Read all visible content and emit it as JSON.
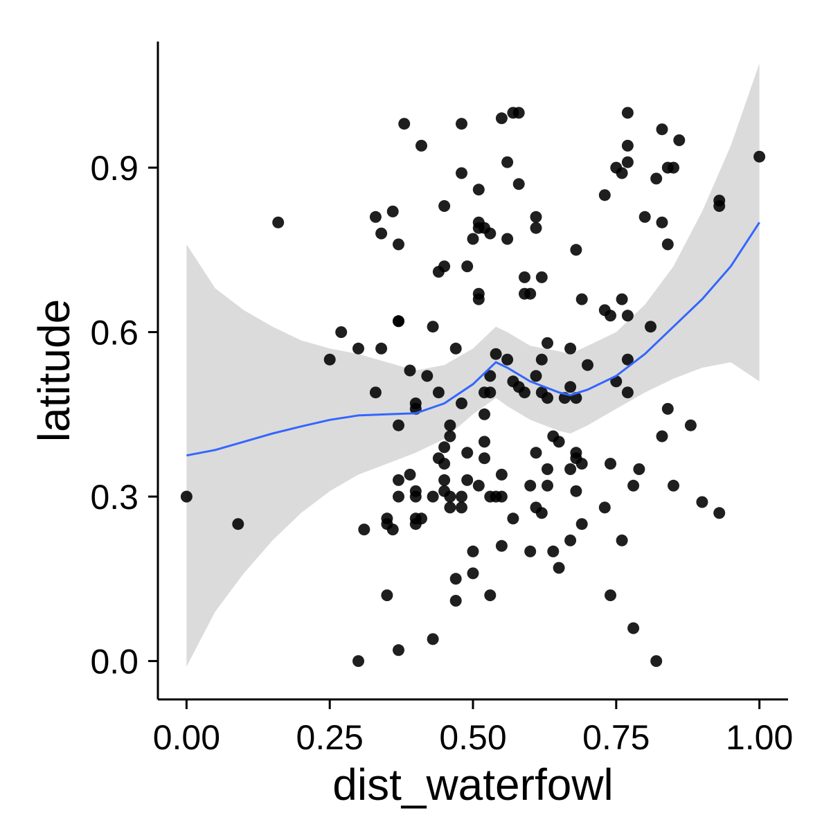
{
  "chart_data": {
    "type": "scatter",
    "title": "",
    "xlabel": "dist_waterfowl",
    "ylabel": "latitude",
    "xlim": [
      -0.05,
      1.05
    ],
    "ylim": [
      -0.07,
      1.13
    ],
    "x_ticks": [
      0,
      0.25,
      0.5,
      0.75,
      1
    ],
    "x_tick_labels": [
      "0.00",
      "0.25",
      "0.50",
      "0.75",
      "1.00"
    ],
    "y_ticks": [
      0,
      0.3,
      0.6,
      0.9
    ],
    "y_tick_labels": [
      "0.0",
      "0.3",
      "0.6",
      "0.9"
    ],
    "grid": false,
    "legend": "none",
    "colors": {
      "points": "#000000",
      "smooth_line": "#3366FF",
      "confidence_band": "#D9D9D9",
      "axis": "#000000"
    },
    "points": [
      [
        0.0,
        0.3
      ],
      [
        0.09,
        0.25
      ],
      [
        0.16,
        0.8
      ],
      [
        0.25,
        0.55
      ],
      [
        0.27,
        0.6
      ],
      [
        0.3,
        0.57
      ],
      [
        0.3,
        0.0
      ],
      [
        0.31,
        0.24
      ],
      [
        0.33,
        0.49
      ],
      [
        0.33,
        0.81
      ],
      [
        0.34,
        0.78
      ],
      [
        0.34,
        0.57
      ],
      [
        0.35,
        0.25
      ],
      [
        0.35,
        0.26
      ],
      [
        0.35,
        0.12
      ],
      [
        0.36,
        0.82
      ],
      [
        0.36,
        0.24
      ],
      [
        0.37,
        0.62
      ],
      [
        0.37,
        0.62
      ],
      [
        0.37,
        0.76
      ],
      [
        0.37,
        0.43
      ],
      [
        0.37,
        0.33
      ],
      [
        0.37,
        0.3
      ],
      [
        0.37,
        0.02
      ],
      [
        0.38,
        0.98
      ],
      [
        0.39,
        0.53
      ],
      [
        0.39,
        0.34
      ],
      [
        0.4,
        0.31
      ],
      [
        0.4,
        0.3
      ],
      [
        0.4,
        0.26
      ],
      [
        0.4,
        0.25
      ],
      [
        0.4,
        0.46
      ],
      [
        0.4,
        0.47
      ],
      [
        0.41,
        0.94
      ],
      [
        0.41,
        0.26
      ],
      [
        0.42,
        0.52
      ],
      [
        0.43,
        0.61
      ],
      [
        0.43,
        0.3
      ],
      [
        0.43,
        0.04
      ],
      [
        0.44,
        0.37
      ],
      [
        0.44,
        0.49
      ],
      [
        0.44,
        0.71
      ],
      [
        0.45,
        0.72
      ],
      [
        0.45,
        0.83
      ],
      [
        0.45,
        0.36
      ],
      [
        0.45,
        0.33
      ],
      [
        0.45,
        0.31
      ],
      [
        0.45,
        0.39
      ],
      [
        0.46,
        0.41
      ],
      [
        0.46,
        0.43
      ],
      [
        0.46,
        0.28
      ],
      [
        0.46,
        0.3
      ],
      [
        0.47,
        0.15
      ],
      [
        0.47,
        0.11
      ],
      [
        0.47,
        0.57
      ],
      [
        0.48,
        0.98
      ],
      [
        0.48,
        0.89
      ],
      [
        0.48,
        0.47
      ],
      [
        0.48,
        0.28
      ],
      [
        0.48,
        0.3
      ],
      [
        0.49,
        0.72
      ],
      [
        0.49,
        0.33
      ],
      [
        0.49,
        0.38
      ],
      [
        0.5,
        0.77
      ],
      [
        0.5,
        0.16
      ],
      [
        0.5,
        0.2
      ],
      [
        0.51,
        0.8
      ],
      [
        0.51,
        0.79
      ],
      [
        0.51,
        0.32
      ],
      [
        0.51,
        0.66
      ],
      [
        0.51,
        0.67
      ],
      [
        0.51,
        0.86
      ],
      [
        0.52,
        0.79
      ],
      [
        0.52,
        0.49
      ],
      [
        0.52,
        0.45
      ],
      [
        0.52,
        0.37
      ],
      [
        0.52,
        0.4
      ],
      [
        0.53,
        0.52
      ],
      [
        0.53,
        0.49
      ],
      [
        0.53,
        0.78
      ],
      [
        0.53,
        0.3
      ],
      [
        0.53,
        0.12
      ],
      [
        0.54,
        0.3
      ],
      [
        0.54,
        0.56
      ],
      [
        0.55,
        0.99
      ],
      [
        0.55,
        0.3
      ],
      [
        0.55,
        0.21
      ],
      [
        0.55,
        0.34
      ],
      [
        0.56,
        0.91
      ],
      [
        0.56,
        0.55
      ],
      [
        0.56,
        0.77
      ],
      [
        0.57,
        1.0
      ],
      [
        0.57,
        0.51
      ],
      [
        0.57,
        0.26
      ],
      [
        0.58,
        1.0
      ],
      [
        0.58,
        0.5
      ],
      [
        0.58,
        0.87
      ],
      [
        0.59,
        0.7
      ],
      [
        0.59,
        0.67
      ],
      [
        0.59,
        0.49
      ],
      [
        0.6,
        0.2
      ],
      [
        0.6,
        0.32
      ],
      [
        0.6,
        0.67
      ],
      [
        0.61,
        0.79
      ],
      [
        0.61,
        0.81
      ],
      [
        0.61,
        0.52
      ],
      [
        0.61,
        0.38
      ],
      [
        0.61,
        0.28
      ],
      [
        0.62,
        0.55
      ],
      [
        0.62,
        0.27
      ],
      [
        0.62,
        0.7
      ],
      [
        0.62,
        0.49
      ],
      [
        0.63,
        0.58
      ],
      [
        0.63,
        0.48
      ],
      [
        0.63,
        0.35
      ],
      [
        0.63,
        0.32
      ],
      [
        0.64,
        0.41
      ],
      [
        0.64,
        0.2
      ],
      [
        0.65,
        0.4
      ],
      [
        0.65,
        0.17
      ],
      [
        0.66,
        0.48
      ],
      [
        0.67,
        0.57
      ],
      [
        0.67,
        0.5
      ],
      [
        0.67,
        0.35
      ],
      [
        0.67,
        0.22
      ],
      [
        0.68,
        0.75
      ],
      [
        0.68,
        0.48
      ],
      [
        0.68,
        0.38
      ],
      [
        0.68,
        0.37
      ],
      [
        0.68,
        0.31
      ],
      [
        0.69,
        0.66
      ],
      [
        0.69,
        0.36
      ],
      [
        0.69,
        0.25
      ],
      [
        0.7,
        0.54
      ],
      [
        0.73,
        0.64
      ],
      [
        0.73,
        0.85
      ],
      [
        0.73,
        0.28
      ],
      [
        0.74,
        0.63
      ],
      [
        0.74,
        0.36
      ],
      [
        0.74,
        0.12
      ],
      [
        0.75,
        0.9
      ],
      [
        0.75,
        0.51
      ],
      [
        0.76,
        0.66
      ],
      [
        0.76,
        0.22
      ],
      [
        0.76,
        0.89
      ],
      [
        0.77,
        0.94
      ],
      [
        0.77,
        1.0
      ],
      [
        0.77,
        0.91
      ],
      [
        0.77,
        0.63
      ],
      [
        0.77,
        0.49
      ],
      [
        0.77,
        0.55
      ],
      [
        0.78,
        0.32
      ],
      [
        0.78,
        0.06
      ],
      [
        0.79,
        0.35
      ],
      [
        0.8,
        0.81
      ],
      [
        0.81,
        0.61
      ],
      [
        0.82,
        0.88
      ],
      [
        0.82,
        0.0
      ],
      [
        0.83,
        0.97
      ],
      [
        0.83,
        0.8
      ],
      [
        0.83,
        0.41
      ],
      [
        0.84,
        0.76
      ],
      [
        0.84,
        0.9
      ],
      [
        0.84,
        0.46
      ],
      [
        0.85,
        0.32
      ],
      [
        0.85,
        0.9
      ],
      [
        0.86,
        0.95
      ],
      [
        0.88,
        0.43
      ],
      [
        0.9,
        0.29
      ],
      [
        0.93,
        0.84
      ],
      [
        0.93,
        0.83
      ],
      [
        0.93,
        0.27
      ],
      [
        1.0,
        0.92
      ]
    ],
    "smooth": {
      "method": "loess",
      "x": [
        0.0,
        0.05,
        0.1,
        0.15,
        0.2,
        0.25,
        0.3,
        0.35,
        0.4,
        0.45,
        0.5,
        0.54,
        0.56,
        0.6,
        0.65,
        0.67,
        0.7,
        0.75,
        0.8,
        0.85,
        0.9,
        0.95,
        1.0
      ],
      "y": [
        0.375,
        0.385,
        0.4,
        0.415,
        0.428,
        0.44,
        0.448,
        0.45,
        0.452,
        0.47,
        0.505,
        0.545,
        0.535,
        0.51,
        0.49,
        0.485,
        0.495,
        0.52,
        0.56,
        0.61,
        0.66,
        0.72,
        0.8
      ],
      "lower": [
        -0.01,
        0.09,
        0.16,
        0.22,
        0.27,
        0.31,
        0.34,
        0.36,
        0.38,
        0.405,
        0.45,
        0.48,
        0.465,
        0.44,
        0.42,
        0.415,
        0.43,
        0.46,
        0.49,
        0.515,
        0.535,
        0.545,
        0.51
      ],
      "upper": [
        0.76,
        0.68,
        0.64,
        0.61,
        0.585,
        0.57,
        0.56,
        0.545,
        0.53,
        0.54,
        0.57,
        0.61,
        0.6,
        0.575,
        0.565,
        0.56,
        0.575,
        0.6,
        0.65,
        0.72,
        0.82,
        0.94,
        1.09
      ]
    }
  }
}
